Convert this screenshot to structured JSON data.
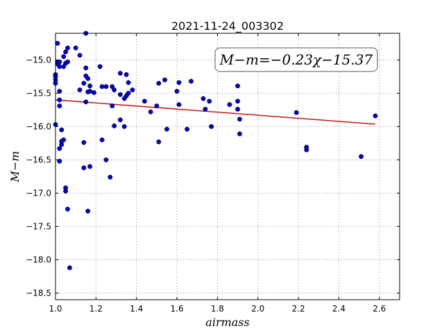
{
  "chart_data": {
    "type": "scatter",
    "title": "2021-11-24_003302",
    "xlabel": "airmass",
    "ylabel": "M−m",
    "xlim": [
      1.0,
      2.7
    ],
    "ylim": [
      -18.6,
      -14.6
    ],
    "x_ticks": [
      "1.0",
      "1.2",
      "1.4",
      "1.6",
      "1.8",
      "2.0",
      "2.2",
      "2.4",
      "2.6"
    ],
    "y_ticks": [
      "−15.0",
      "−15.5",
      "−16.0",
      "−16.5",
      "−17.0",
      "−17.5",
      "−18.0",
      "−18.5"
    ],
    "y_tick_values": [
      -15.0,
      -15.5,
      -16.0,
      -16.5,
      -17.0,
      -17.5,
      -18.0,
      -18.5
    ],
    "x_tick_values": [
      1.0,
      1.2,
      1.4,
      1.6,
      1.8,
      2.0,
      2.2,
      2.4,
      2.6
    ],
    "grid": true,
    "point_color": "#0000cc",
    "fit_line_color": "#cc0000",
    "fit": {
      "slope": -0.23,
      "intercept": -15.37,
      "x_range": [
        1.0,
        2.58
      ]
    },
    "annotation": "M−m=−0.23χ−15.37",
    "points": [
      [
        1.01,
        -14.75
      ],
      [
        1.01,
        -15.03
      ],
      [
        1.01,
        -15.06
      ],
      [
        1.0,
        -15.22
      ],
      [
        1.0,
        -15.25
      ],
      [
        1.0,
        -15.3
      ],
      [
        1.0,
        -15.35
      ],
      [
        1.0,
        -15.97
      ],
      [
        1.02,
        -15.03
      ],
      [
        1.02,
        -15.1
      ],
      [
        1.04,
        -14.95
      ],
      [
        1.04,
        -15.1
      ],
      [
        1.05,
        -14.88
      ],
      [
        1.05,
        -15.05
      ],
      [
        1.06,
        -15.03
      ],
      [
        1.06,
        -14.82
      ],
      [
        1.1,
        -14.82
      ],
      [
        1.12,
        -14.93
      ],
      [
        1.15,
        -14.6
      ],
      [
        1.02,
        -15.47
      ],
      [
        1.02,
        -15.6
      ],
      [
        1.02,
        -15.69
      ],
      [
        1.03,
        -16.05
      ],
      [
        1.02,
        -16.33
      ],
      [
        1.03,
        -16.27
      ],
      [
        1.04,
        -16.2
      ],
      [
        1.03,
        -16.22
      ],
      [
        1.02,
        -16.52
      ],
      [
        1.05,
        -16.92
      ],
      [
        1.05,
        -16.97
      ],
      [
        1.06,
        -17.24
      ],
      [
        1.07,
        -18.12
      ],
      [
        1.12,
        -15.45
      ],
      [
        1.14,
        -15.35
      ],
      [
        1.15,
        -15.12
      ],
      [
        1.15,
        -15.24
      ],
      [
        1.16,
        -15.28
      ],
      [
        1.17,
        -15.39
      ],
      [
        1.16,
        -15.48
      ],
      [
        1.17,
        -15.47
      ],
      [
        1.19,
        -15.49
      ],
      [
        1.15,
        -15.63
      ],
      [
        1.14,
        -16.24
      ],
      [
        1.14,
        -16.62
      ],
      [
        1.17,
        -16.6
      ],
      [
        1.16,
        -17.27
      ],
      [
        1.22,
        -15.1
      ],
      [
        1.23,
        -15.4
      ],
      [
        1.25,
        -15.4
      ],
      [
        1.28,
        -15.4
      ],
      [
        1.29,
        -15.45
      ],
      [
        1.32,
        -15.52
      ],
      [
        1.32,
        -15.2
      ],
      [
        1.35,
        -15.22
      ],
      [
        1.34,
        -15.58
      ],
      [
        1.35,
        -15.54
      ],
      [
        1.36,
        -15.34
      ],
      [
        1.36,
        -15.5
      ],
      [
        1.38,
        -15.45
      ],
      [
        1.28,
        -15.69
      ],
      [
        1.29,
        -15.99
      ],
      [
        1.23,
        -16.2
      ],
      [
        1.25,
        -16.5
      ],
      [
        1.27,
        -16.76
      ],
      [
        1.32,
        -15.9
      ],
      [
        1.34,
        -16.0
      ],
      [
        1.44,
        -15.62
      ],
      [
        1.47,
        -15.78
      ],
      [
        1.5,
        -15.69
      ],
      [
        1.51,
        -15.35
      ],
      [
        1.54,
        -15.3
      ],
      [
        1.51,
        -16.23
      ],
      [
        1.55,
        -16.04
      ],
      [
        1.6,
        -15.47
      ],
      [
        1.61,
        -15.34
      ],
      [
        1.61,
        -15.67
      ],
      [
        1.65,
        -16.04
      ],
      [
        1.67,
        -15.32
      ],
      [
        1.73,
        -15.58
      ],
      [
        1.74,
        -15.74
      ],
      [
        1.76,
        -15.62
      ],
      [
        1.77,
        -16.0
      ],
      [
        1.86,
        -15.67
      ],
      [
        1.9,
        -15.39
      ],
      [
        1.9,
        -15.62
      ],
      [
        1.9,
        -15.74
      ],
      [
        1.91,
        -15.89
      ],
      [
        1.91,
        -16.11
      ],
      [
        2.19,
        -15.79
      ],
      [
        2.24,
        -16.31
      ],
      [
        2.24,
        -16.35
      ],
      [
        2.51,
        -16.45
      ],
      [
        2.58,
        -15.84
      ]
    ]
  }
}
